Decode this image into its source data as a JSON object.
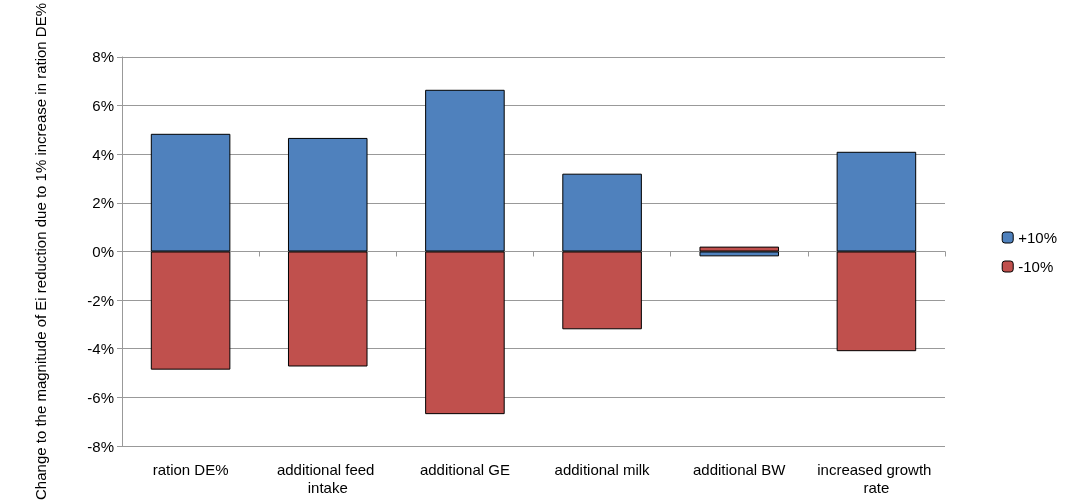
{
  "chart_data": {
    "type": "bar",
    "stacked": true,
    "ylabel": "Change to the magnitude of Ei reduction due to 1% increase in ration DE%",
    "categories": [
      "ration DE%",
      "additional feed intake",
      "additional GE",
      "additional milk",
      "additional BW",
      "increased growth rate"
    ],
    "series": [
      {
        "name": "+10%",
        "color": "#4f81bd",
        "values": [
          4.84,
          4.67,
          6.65,
          3.2,
          -0.2,
          4.1
        ]
      },
      {
        "name": "-10%",
        "color": "#c0504d",
        "values": [
          -4.86,
          -4.73,
          -6.69,
          -3.2,
          0.2,
          -4.1
        ]
      }
    ],
    "ylim": [
      -8,
      8
    ],
    "yticks": [
      {
        "value": -8,
        "label": "-8%"
      },
      {
        "value": -6,
        "label": "-6%"
      },
      {
        "value": -4,
        "label": "-4%"
      },
      {
        "value": -2,
        "label": "-2%"
      },
      {
        "value": 0,
        "label": "0%"
      },
      {
        "value": 2,
        "label": "2%"
      },
      {
        "value": 4,
        "label": "4%"
      },
      {
        "value": 6,
        "label": "6%"
      },
      {
        "value": 8,
        "label": "8%"
      }
    ],
    "grid": "y",
    "legend": "right"
  }
}
